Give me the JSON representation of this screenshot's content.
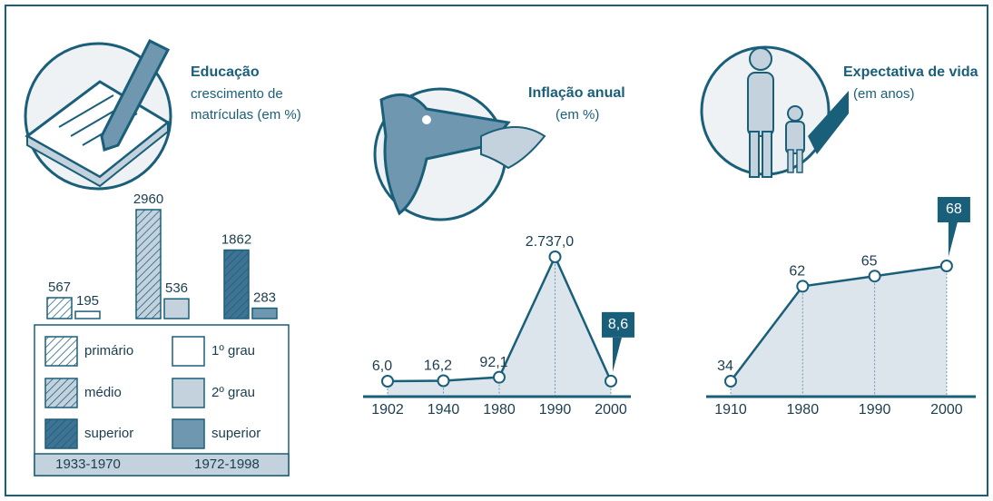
{
  "chart_data": [
    {
      "type": "bar",
      "title": "Educação",
      "subtitle": [
        "crescimento de",
        "matrículas (em %)"
      ],
      "categories": [
        null,
        null,
        null
      ],
      "series": [
        {
          "name": "1933-1970",
          "hatched": true,
          "colors": [
            "#ffffff",
            "#c3d2dd",
            "#3f7393"
          ],
          "legend_labels": [
            "primário",
            "médio",
            "superior"
          ],
          "values": [
            567,
            2960,
            1862
          ]
        },
        {
          "name": "1972-1998",
          "hatched": false,
          "colors": [
            "#ffffff",
            "#c3d2dd",
            "#6f97b0"
          ],
          "legend_labels": [
            "1º grau",
            "2º grau",
            "superior"
          ],
          "values": [
            195,
            536,
            283
          ]
        }
      ]
    },
    {
      "type": "line",
      "title": "Inflação anual",
      "subtitle": [
        "(em %)"
      ],
      "categories": [
        "1902",
        "1940",
        "1980",
        "1990",
        "2000"
      ],
      "values": [
        6.0,
        16.2,
        92.1,
        2737.0,
        8.6
      ],
      "value_labels": [
        "6,0",
        "16,2",
        "92,1",
        "2.737,0",
        "8,6"
      ],
      "color": "#1a5f7a"
    },
    {
      "type": "line",
      "title": "Expectativa de vida",
      "subtitle": [
        "(em anos)"
      ],
      "categories": [
        "1910",
        "1980",
        "1990",
        "2000"
      ],
      "values": [
        34,
        62,
        65,
        68
      ],
      "color": "#1a5f7a"
    }
  ]
}
